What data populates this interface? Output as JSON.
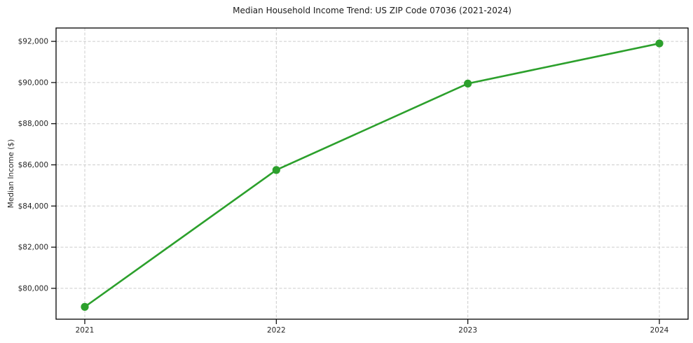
{
  "chart_data": {
    "type": "line",
    "title": "Median Household Income Trend: US ZIP Code 07036 (2021-2024)",
    "xlabel": "",
    "ylabel": "Median Income ($)",
    "x": [
      2021,
      2022,
      2023,
      2024
    ],
    "x_tick_labels": [
      "2021",
      "2022",
      "2023",
      "2024"
    ],
    "series": [
      {
        "name": "Median Household Income",
        "values": [
          79100,
          85750,
          89950,
          91900
        ],
        "color": "#2ca02c",
        "marker": "circle"
      }
    ],
    "y_ticks": [
      80000,
      82000,
      84000,
      86000,
      88000,
      90000,
      92000
    ],
    "y_tick_labels": [
      "$80,000",
      "$82,000",
      "$84,000",
      "$86,000",
      "$88,000",
      "$90,000",
      "$92,000"
    ],
    "xlim": [
      2020.85,
      2024.15
    ],
    "ylim": [
      78500,
      92650
    ],
    "grid": true,
    "legend": "none",
    "colors": {
      "line": "#2ca02c",
      "grid": "#cccccc",
      "axis": "#000000",
      "text": "#262626",
      "background": "#ffffff"
    }
  }
}
